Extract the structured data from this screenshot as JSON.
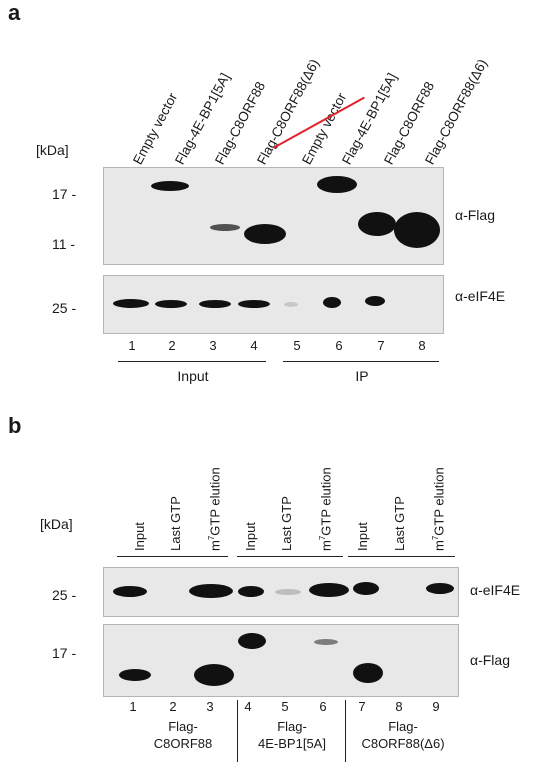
{
  "panel_a": {
    "letter": "a",
    "kda": "[kDa]",
    "lane_labels": [
      "Empty vector",
      "Flag-4E-BP1[5A]",
      "Flag-C8ORF88",
      "Flag-C8ORF88(Δ6)",
      "Empty vector",
      "Flag-4E-BP1[5A]",
      "Flag-C8ORF88",
      "Flag-C8ORF88(Δ6)"
    ],
    "markers_top": [
      "17 -",
      "11 -"
    ],
    "markers_bottom": [
      "25 -"
    ],
    "antibody_top": "α-Flag",
    "antibody_bottom": "α-eIF4E",
    "lane_numbers": [
      "1",
      "2",
      "3",
      "4",
      "5",
      "6",
      "7",
      "8"
    ],
    "groups": [
      "Input",
      "IP"
    ]
  },
  "panel_b": {
    "letter": "b",
    "kda": "[kDa]",
    "lane_a": "Input",
    "lane_b": "Last GTP",
    "lane_c_pre": "m",
    "lane_c_sup": "7",
    "lane_c_post": "GTP elution",
    "markers_top": [
      "25 -"
    ],
    "markers_bottom": [
      "17 -"
    ],
    "antibody_top": "α-eIF4E",
    "antibody_bottom": "α-Flag",
    "lane_numbers": [
      "1",
      "2",
      "3",
      "4",
      "5",
      "6",
      "7",
      "8",
      "9"
    ],
    "groups": [
      {
        "line1": "Flag-",
        "line2": "C8ORF88"
      },
      {
        "line1": "Flag-",
        "line2": "4E-BP1[5A]"
      },
      {
        "line1": "Flag-",
        "line2": "C8ORF88(Δ6)"
      }
    ]
  },
  "colors": {
    "band": "#111111",
    "gel": "#e8e8e8",
    "accent_red": "#e0222b"
  }
}
